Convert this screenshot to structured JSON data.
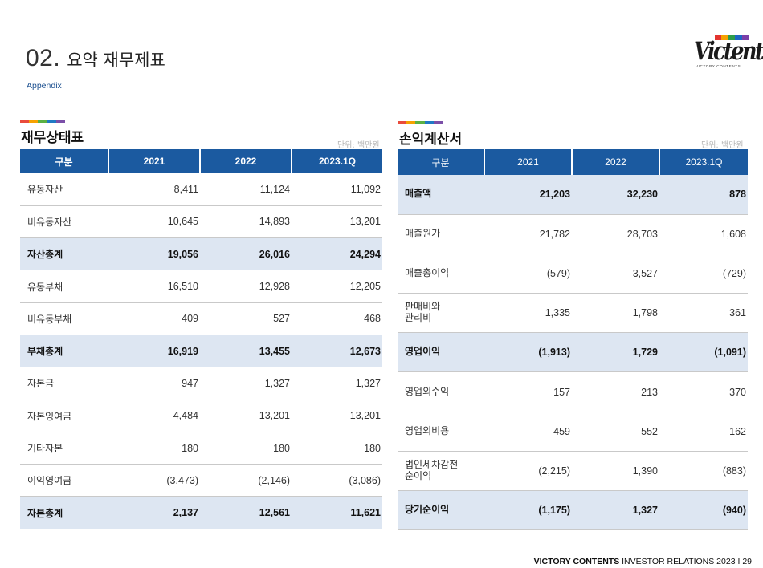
{
  "header": {
    "number": "02.",
    "title": "요약 재무제표",
    "subtitle": "Appendix"
  },
  "logo": {
    "word": "Victents",
    "sub": "VICTORY CONTENTS",
    "colors": [
      "#e3342f",
      "#f6a100",
      "#2e9d4b",
      "#1f66c4",
      "#7b3fa8"
    ]
  },
  "accent_colors": [
    "#e94b3c",
    "#f6a100",
    "#5bb143",
    "#1f7ac4",
    "#7b4fa8"
  ],
  "balance_sheet": {
    "title": "재무상태표",
    "unit": "단위: 백만원",
    "columns": [
      "구분",
      "2021",
      "2022",
      "2023.1Q"
    ],
    "rows": [
      {
        "label": "유동자산",
        "v2021": "8,411",
        "v2022": "11,124",
        "v2023": "11,092",
        "bold": false
      },
      {
        "label": "비유동자산",
        "v2021": "10,645",
        "v2022": "14,893",
        "v2023": "13,201",
        "bold": false
      },
      {
        "label": "자산총계",
        "v2021": "19,056",
        "v2022": "26,016",
        "v2023": "24,294",
        "bold": true
      },
      {
        "label": "유동부채",
        "v2021": "16,510",
        "v2022": "12,928",
        "v2023": "12,205",
        "bold": false
      },
      {
        "label": "비유동부채",
        "v2021": "409",
        "v2022": "527",
        "v2023": "468",
        "bold": false
      },
      {
        "label": "부채총계",
        "v2021": "16,919",
        "v2022": "13,455",
        "v2023": "12,673",
        "bold": true
      },
      {
        "label": "자본금",
        "v2021": "947",
        "v2022": "1,327",
        "v2023": "1,327",
        "bold": false
      },
      {
        "label": "자본잉여금",
        "v2021": "4,484",
        "v2022": "13,201",
        "v2023": "13,201",
        "bold": false
      },
      {
        "label": "기타자본",
        "v2021": "180",
        "v2022": "180",
        "v2023": "180",
        "bold": false
      },
      {
        "label": "이익영여금",
        "v2021": "(3,473)",
        "v2022": "(2,146)",
        "v2023": "(3,086)",
        "bold": false
      },
      {
        "label": "자본총계",
        "v2021": "2,137",
        "v2022": "12,561",
        "v2023": "11,621",
        "bold": true
      }
    ]
  },
  "income_statement": {
    "title": "손익계산서",
    "unit": "단위: 백만원",
    "columns": [
      "구분",
      "2021",
      "2022",
      "2023.1Q"
    ],
    "rows": [
      {
        "label": "매출액",
        "v2021": "21,203",
        "v2022": "32,230",
        "v2023": "878",
        "bold": true
      },
      {
        "label": "매출원가",
        "v2021": "21,782",
        "v2022": "28,703",
        "v2023": "1,608",
        "bold": false
      },
      {
        "label": "매출총이익",
        "v2021": "(579)",
        "v2022": "3,527",
        "v2023": "(729)",
        "bold": false
      },
      {
        "label": "판매비와\n관리비",
        "v2021": "1,335",
        "v2022": "1,798",
        "v2023": "361",
        "bold": false
      },
      {
        "label": "영업이익",
        "v2021": "(1,913)",
        "v2022": "1,729",
        "v2023": "(1,091)",
        "bold": true
      },
      {
        "label": "영업외수익",
        "v2021": "157",
        "v2022": "213",
        "v2023": "370",
        "bold": false
      },
      {
        "label": "영업외비용",
        "v2021": "459",
        "v2022": "552",
        "v2023": "162",
        "bold": false
      },
      {
        "label": "법인세차감전\n순이익",
        "v2021": "(2,215)",
        "v2022": "1,390",
        "v2023": "(883)",
        "bold": false
      },
      {
        "label": "당기순이익",
        "v2021": "(1,175)",
        "v2022": "1,327",
        "v2023": "(940)",
        "bold": true
      }
    ]
  },
  "footer": {
    "brand": "VICTORY CONTENTS",
    "text": "INVESTOR RELATIONS 2023",
    "separator": "I",
    "page": "29"
  }
}
